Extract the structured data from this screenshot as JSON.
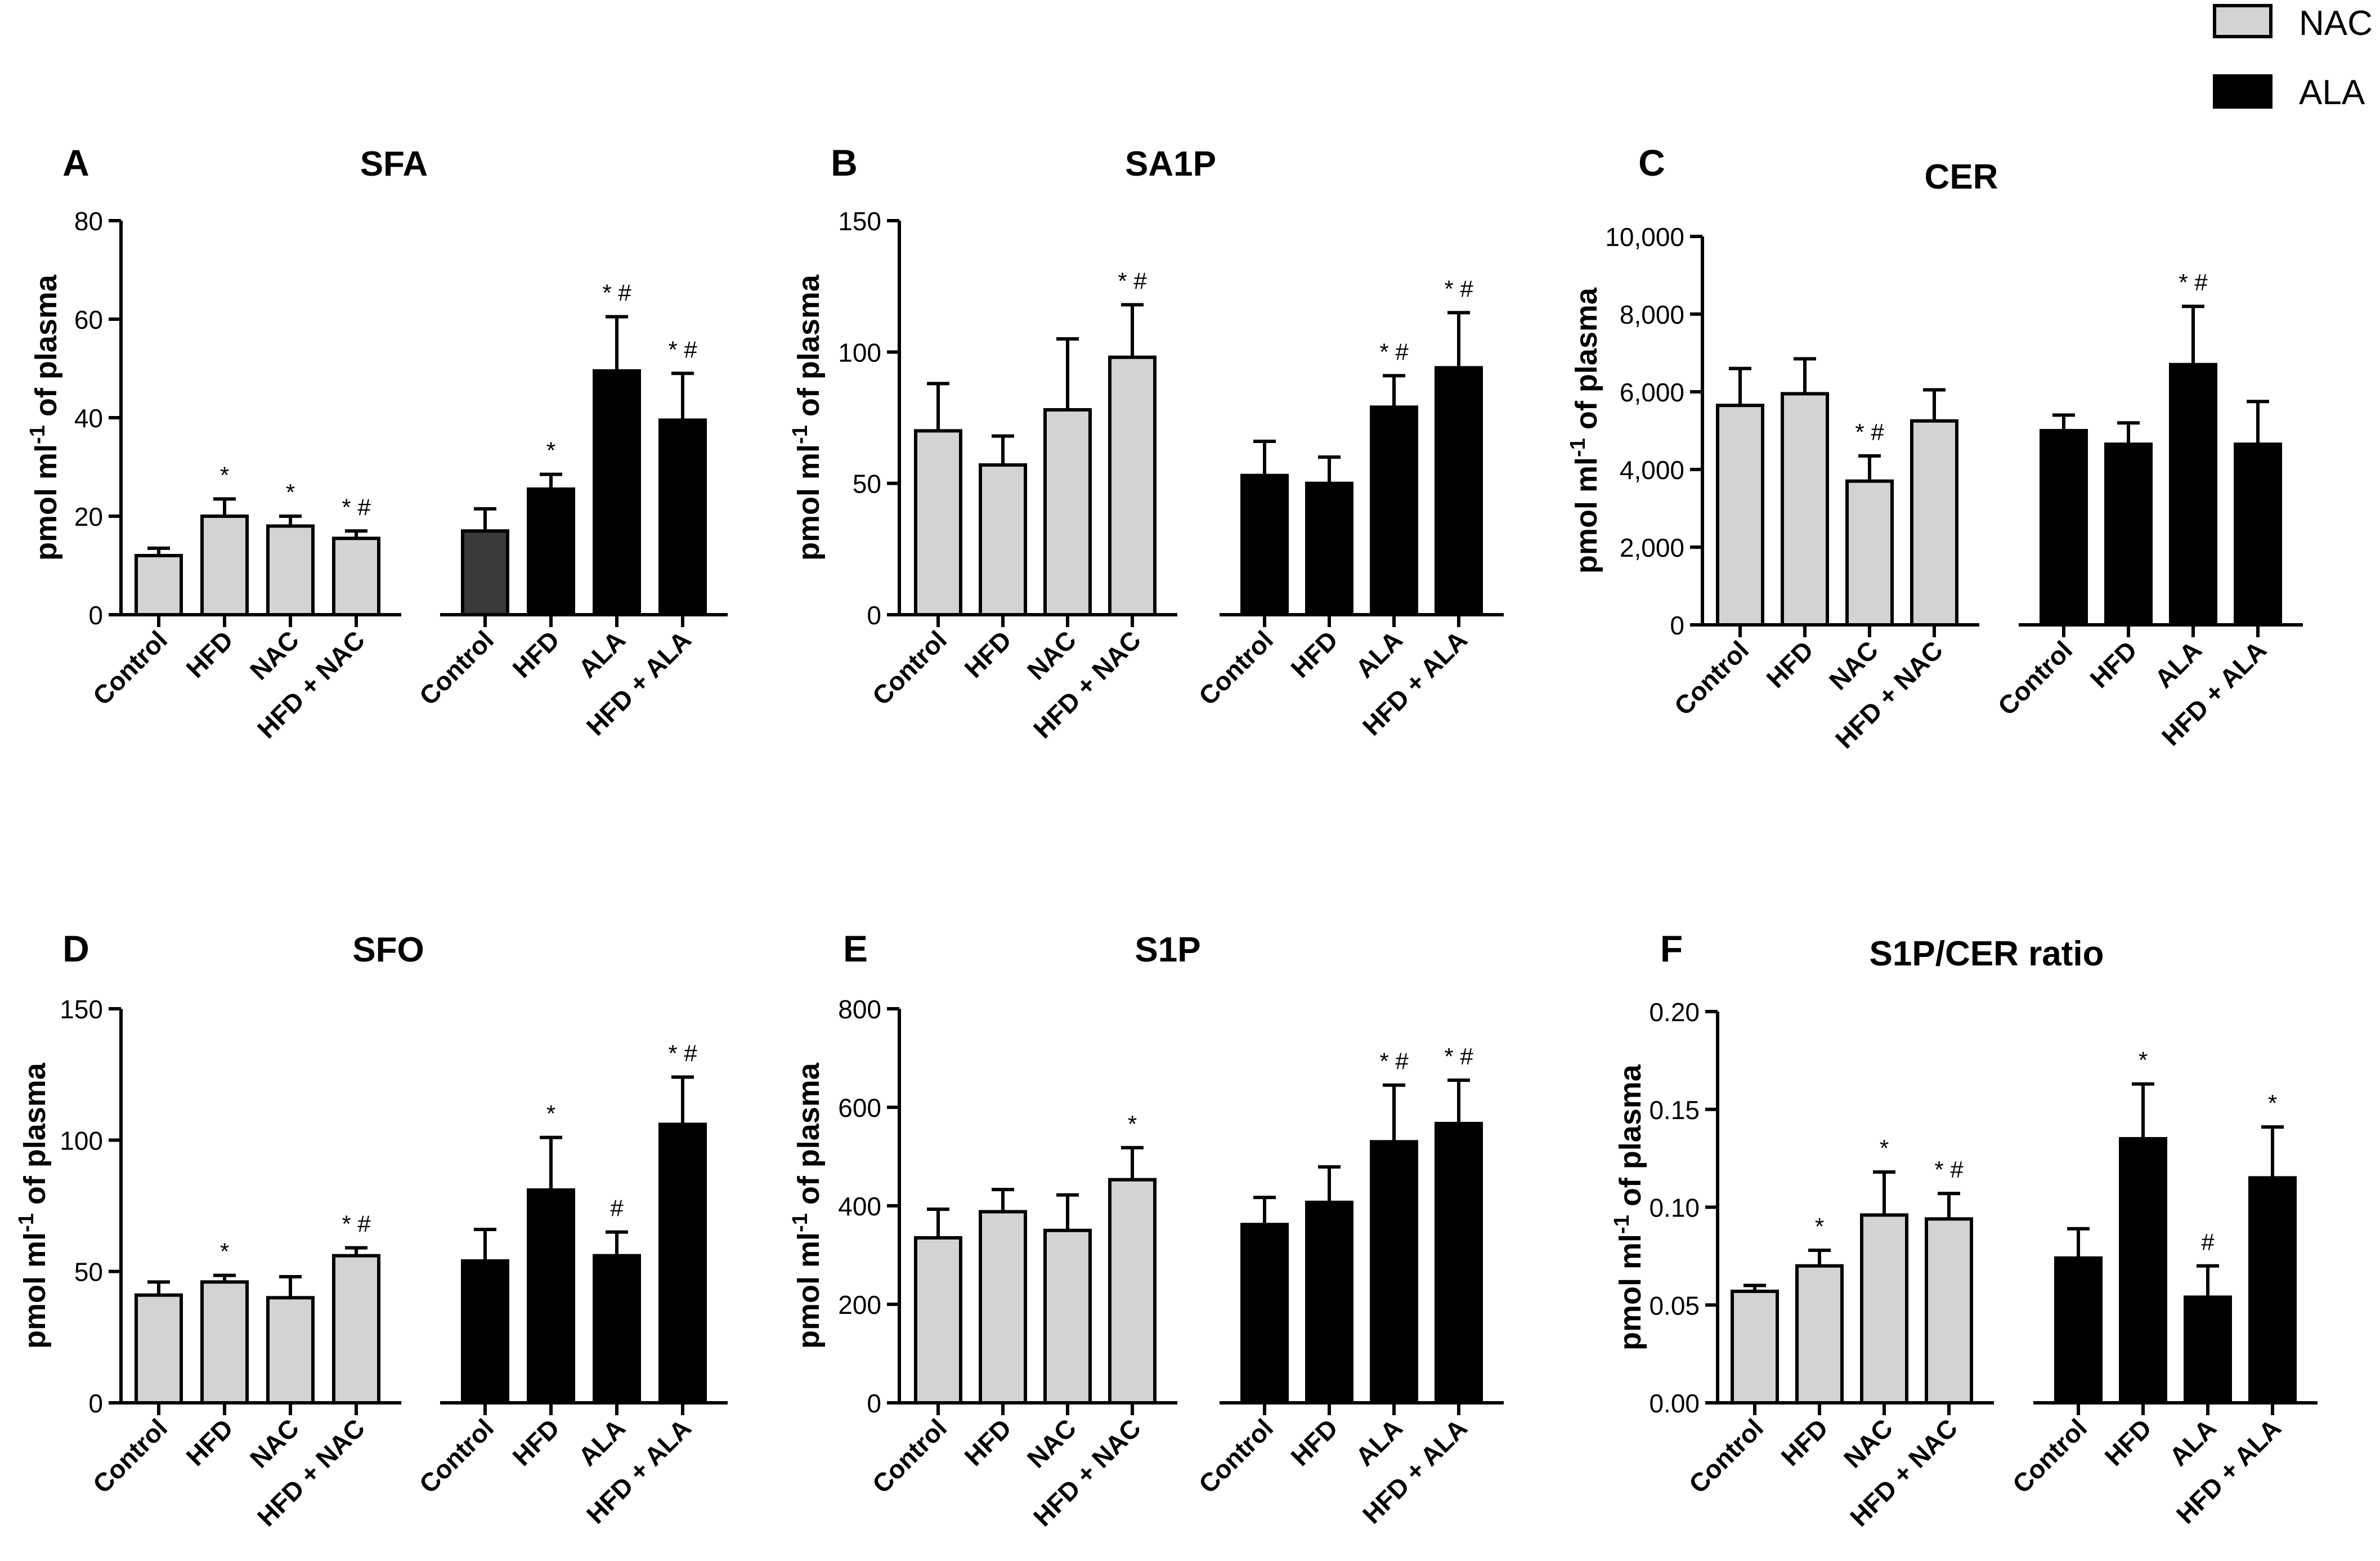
{
  "legend": {
    "entries": [
      {
        "label": "NAC",
        "color": "#d3d3d3"
      },
      {
        "label": "ALA",
        "color": "#000000"
      }
    ]
  },
  "colors": {
    "nac_group": "#d3d3d3",
    "ala_group": "#000000",
    "ala_control": "#3a3a3a",
    "outline": "#000000"
  },
  "chart_data": [
    {
      "panel": "A",
      "title": "SFA",
      "type": "bar",
      "ylabel": "pmol ml-1 of plasma",
      "ylim": [
        0,
        80
      ],
      "ytick_labels": [
        "0",
        "20",
        "40",
        "60",
        "80"
      ],
      "categories": [
        "Control",
        "HFD",
        "NAC",
        "HFD + NAC",
        "Control",
        "HFD",
        "ALA",
        "HFD + ALA"
      ],
      "values": [
        12,
        20,
        18,
        15.5,
        17,
        25.5,
        49.5,
        39.5
      ],
      "errors": [
        1.5,
        3.5,
        2,
        1.5,
        4.5,
        3,
        11,
        9.5
      ],
      "annotations": [
        "",
        "*",
        "*",
        "* #",
        "",
        "*",
        "* #",
        "* #"
      ]
    },
    {
      "panel": "B",
      "title": "SA1P",
      "type": "bar",
      "ylabel": "pmol ml-1 of plasma",
      "ylim": [
        0,
        150
      ],
      "ytick_labels": [
        "0",
        "50",
        "100",
        "150"
      ],
      "categories": [
        "Control",
        "HFD",
        "NAC",
        "HFD + NAC",
        "Control",
        "HFD",
        "ALA",
        "HFD + ALA"
      ],
      "values": [
        70,
        57,
        78,
        98,
        53,
        50,
        79,
        94
      ],
      "errors": [
        18,
        11,
        27,
        20,
        13,
        10,
        12,
        21
      ],
      "annotations": [
        "",
        "",
        "",
        "* #",
        "",
        "",
        "* #",
        "* #"
      ]
    },
    {
      "panel": "C",
      "title": "CER",
      "type": "bar",
      "ylabel": "pmol ml-1 of plasma",
      "ylim": [
        0,
        10000
      ],
      "ytick_labels": [
        "0",
        "2,000",
        "4,000",
        "6,000",
        "8,000",
        "10,000"
      ],
      "categories": [
        "Control",
        "HFD",
        "NAC",
        "HFD + NAC",
        "Control",
        "HFD",
        "ALA",
        "HFD + ALA"
      ],
      "values": [
        5650,
        5950,
        3700,
        5250,
        5000,
        4650,
        6700,
        4650
      ],
      "errors": [
        950,
        900,
        650,
        800,
        400,
        550,
        1500,
        1100
      ],
      "annotations": [
        "",
        "",
        "* #",
        "",
        "",
        "",
        "* #",
        ""
      ]
    },
    {
      "panel": "D",
      "title": "SFO",
      "type": "bar",
      "ylabel": "pmol ml-1 of plasma",
      "ylim": [
        0,
        150
      ],
      "ytick_labels": [
        "0",
        "50",
        "100",
        "150"
      ],
      "categories": [
        "Control",
        "HFD",
        "NAC",
        "HFD + NAC",
        "Control",
        "HFD",
        "ALA",
        "HFD + ALA"
      ],
      "values": [
        41,
        46,
        40,
        56,
        54,
        81,
        56,
        106
      ],
      "errors": [
        5,
        2.5,
        8,
        3,
        12,
        20,
        9,
        18
      ],
      "annotations": [
        "",
        "*",
        "",
        "* #",
        "",
        "*",
        "#",
        "* #"
      ]
    },
    {
      "panel": "E",
      "title": "S1P",
      "type": "bar",
      "ylabel": "pmol ml-1 of plasma",
      "ylim": [
        0,
        800
      ],
      "ytick_labels": [
        "0",
        "200",
        "400",
        "600",
        "800"
      ],
      "categories": [
        "Control",
        "HFD",
        "NAC",
        "HFD + NAC",
        "Control",
        "HFD",
        "ALA",
        "HFD + ALA"
      ],
      "values": [
        335,
        388,
        350,
        453,
        362,
        407,
        530,
        567
      ],
      "errors": [
        58,
        45,
        72,
        65,
        55,
        72,
        115,
        88
      ],
      "annotations": [
        "",
        "",
        "",
        "*",
        "",
        "",
        "* #",
        "* #"
      ]
    },
    {
      "panel": "F",
      "title": "S1P/CER ratio",
      "type": "bar",
      "ylabel": "pmol ml-1 of plasma",
      "ylim": [
        0,
        0.2
      ],
      "ytick_labels": [
        "0.00",
        "0.05",
        "0.10",
        "0.15",
        "0.20"
      ],
      "categories": [
        "Control",
        "HFD",
        "NAC",
        "HFD + NAC",
        "Control",
        "HFD",
        "ALA",
        "HFD + ALA"
      ],
      "values": [
        0.057,
        0.07,
        0.096,
        0.094,
        0.074,
        0.135,
        0.054,
        0.115
      ],
      "errors": [
        0.003,
        0.008,
        0.022,
        0.013,
        0.015,
        0.028,
        0.016,
        0.026
      ],
      "annotations": [
        "",
        "*",
        "*",
        "* #",
        "",
        "*",
        "#",
        "*"
      ]
    }
  ]
}
